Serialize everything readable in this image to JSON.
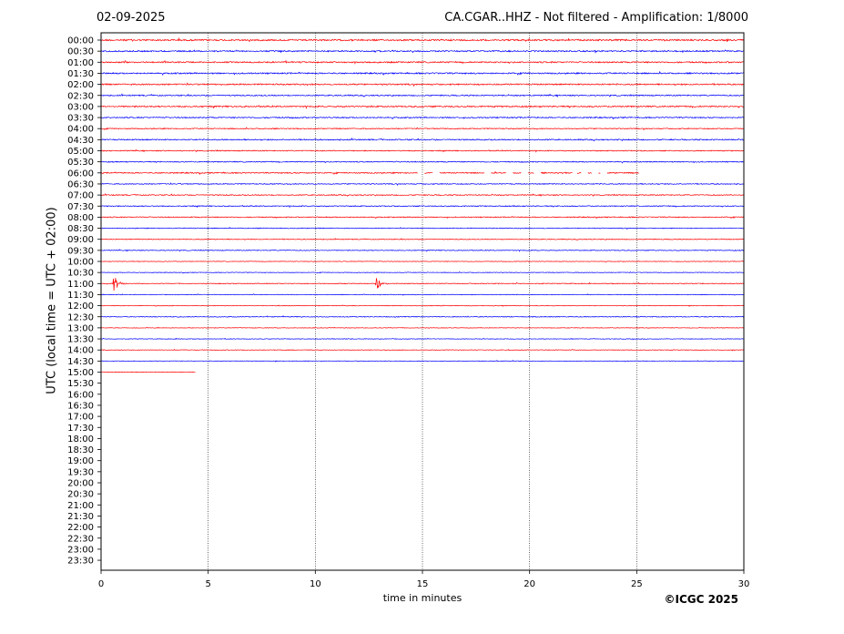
{
  "header": {
    "date": "02-09-2025",
    "title": "CA.CGAR..HHZ - Not filtered - Amplification: 1/8000"
  },
  "footer": {
    "copyright": "©ICGC 2025"
  },
  "chart_data": {
    "type": "line",
    "title": "CA.CGAR..HHZ - Not filtered - Amplification: 1/8000",
    "xlabel": "time in minutes",
    "ylabel": "UTC (local time = UTC + 02:00)",
    "xlim": [
      0,
      30
    ],
    "xticks": [
      0,
      5,
      10,
      15,
      20,
      25,
      30
    ],
    "vertical_gridlines": [
      5,
      10,
      15,
      20,
      25
    ],
    "row_labels": [
      "00:00",
      "00:30",
      "01:00",
      "01:30",
      "02:00",
      "02:30",
      "03:00",
      "03:30",
      "04:00",
      "04:30",
      "05:00",
      "05:30",
      "06:00",
      "06:30",
      "07:00",
      "07:30",
      "08:00",
      "08:30",
      "09:00",
      "09:30",
      "10:00",
      "10:30",
      "11:00",
      "11:30",
      "12:00",
      "12:30",
      "13:00",
      "13:30",
      "14:00",
      "14:30",
      "15:00",
      "15:30",
      "16:00",
      "16:30",
      "17:00",
      "17:30",
      "18:00",
      "18:30",
      "19:00",
      "19:30",
      "20:00",
      "20:30",
      "21:00",
      "21:30",
      "22:00",
      "22:30",
      "23:00",
      "23:30"
    ],
    "row_colors": [
      "#ff0000",
      "#0000ff"
    ],
    "traces": [
      {
        "row": "00:00",
        "start": 0,
        "end": 30,
        "noise": 0.8
      },
      {
        "row": "00:30",
        "start": 0,
        "end": 30,
        "noise": 0.7
      },
      {
        "row": "01:00",
        "start": 0,
        "end": 30,
        "noise": 0.7
      },
      {
        "row": "01:30",
        "start": 0,
        "end": 30,
        "noise": 0.7
      },
      {
        "row": "02:00",
        "start": 0,
        "end": 30,
        "noise": 0.7
      },
      {
        "row": "02:30",
        "start": 0,
        "end": 30,
        "noise": 0.6
      },
      {
        "row": "03:00",
        "start": 0,
        "end": 30,
        "noise": 0.7
      },
      {
        "row": "03:30",
        "start": 0,
        "end": 30,
        "noise": 0.6
      },
      {
        "row": "04:00",
        "start": 0,
        "end": 30,
        "noise": 0.5
      },
      {
        "row": "04:30",
        "start": 0,
        "end": 30,
        "noise": 0.6
      },
      {
        "row": "05:00",
        "start": 0,
        "end": 30,
        "noise": 0.5
      },
      {
        "row": "05:30",
        "start": 0,
        "end": 30,
        "noise": 0.5
      },
      {
        "row": "06:00",
        "start": 0,
        "end": 30,
        "noise": 0.6,
        "gaps": [
          [
            14.8,
            15.1
          ],
          [
            15.5,
            15.8
          ],
          [
            17.9,
            18.2
          ],
          [
            18.9,
            19.2
          ],
          [
            19.6,
            19.9
          ],
          [
            20.2,
            20.5
          ],
          [
            22.0,
            22.2
          ],
          [
            22.4,
            22.7
          ],
          [
            22.9,
            23.2
          ],
          [
            23.3,
            23.6
          ],
          [
            25.1,
            30
          ]
        ]
      },
      {
        "row": "06:30",
        "start": 0,
        "end": 30,
        "noise": 0.5
      },
      {
        "row": "07:00",
        "start": 0,
        "end": 30,
        "noise": 0.5
      },
      {
        "row": "07:30",
        "start": 0,
        "end": 30,
        "noise": 0.5
      },
      {
        "row": "08:00",
        "start": 0,
        "end": 30,
        "noise": 0.5
      },
      {
        "row": "08:30",
        "start": 0,
        "end": 30,
        "noise": 0.4
      },
      {
        "row": "09:00",
        "start": 0,
        "end": 30,
        "noise": 0.4
      },
      {
        "row": "09:30",
        "start": 0,
        "end": 30,
        "noise": 0.4
      },
      {
        "row": "10:00",
        "start": 0,
        "end": 30,
        "noise": 0.3
      },
      {
        "row": "10:30",
        "start": 0,
        "end": 30,
        "noise": 0.3
      },
      {
        "row": "11:00",
        "start": 0,
        "end": 30,
        "noise": 0.4,
        "events": [
          {
            "t": 0.6,
            "amp": 10
          },
          {
            "t": 12.85,
            "amp": 10
          }
        ]
      },
      {
        "row": "11:30",
        "start": 0,
        "end": 30,
        "noise": 0.3
      },
      {
        "row": "12:00",
        "start": 0,
        "end": 30,
        "noise": 0.3
      },
      {
        "row": "12:30",
        "start": 0,
        "end": 30,
        "noise": 0.4
      },
      {
        "row": "13:00",
        "start": 0,
        "end": 30,
        "noise": 0.3
      },
      {
        "row": "13:30",
        "start": 0,
        "end": 30,
        "noise": 0.3
      },
      {
        "row": "14:00",
        "start": 0,
        "end": 30,
        "noise": 0.3
      },
      {
        "row": "14:30",
        "start": 0,
        "end": 30,
        "noise": 0.3
      },
      {
        "row": "15:00",
        "start": 0,
        "end": 4.4,
        "noise": 0.3
      }
    ]
  }
}
